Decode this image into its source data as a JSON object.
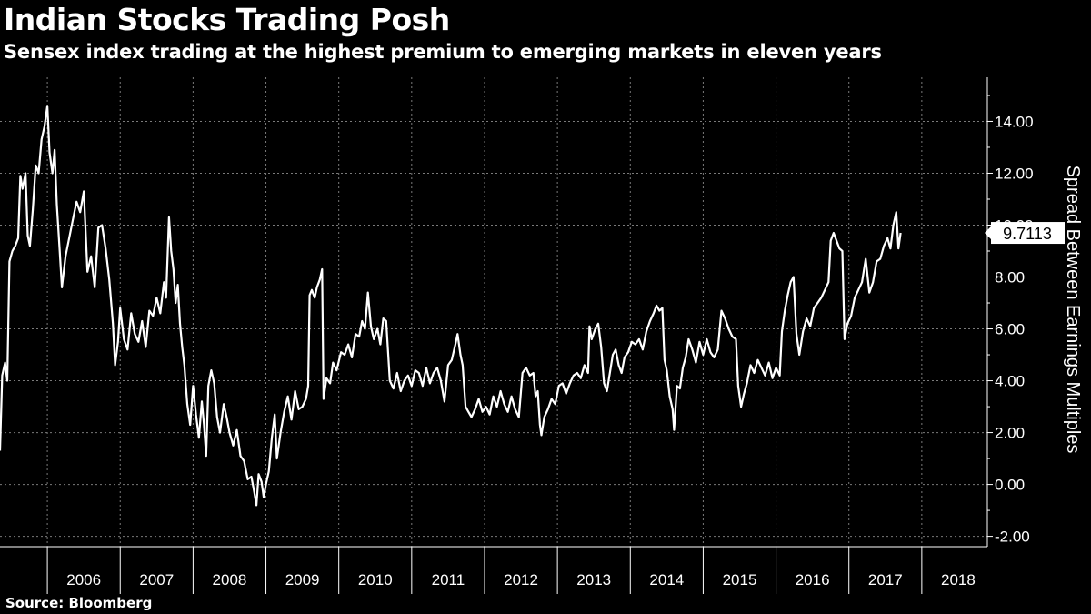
{
  "header": {
    "title": "Indian Stocks Trading Posh",
    "subtitle": "Sensex index trading at the highest premium to emerging markets in eleven years"
  },
  "footer": {
    "source": "Source: Bloomberg"
  },
  "colors": {
    "background": "#000000",
    "line": "#ffffff",
    "grid": "#7a7a7a"
  },
  "chart_data": {
    "type": "line",
    "title": "Indian Stocks Trading Posh",
    "subtitle": "Sensex index trading at the highest premium to emerging markets in eleven years",
    "xlabel": "",
    "ylabel": "Spread Between Earnings Multiples",
    "x_tick_labels": [
      "2006",
      "2007",
      "2008",
      "2009",
      "2010",
      "2011",
      "2012",
      "2013",
      "2014",
      "2015",
      "2016",
      "2017",
      "2018"
    ],
    "y_tick_labels": [
      "-2.00",
      "0.00",
      "2.00",
      "4.00",
      "6.00",
      "8.00",
      "10.00",
      "12.00",
      "14.00"
    ],
    "ylim": [
      -2.4,
      15.7
    ],
    "xlim": [
      2005.35,
      2018.9
    ],
    "grid": true,
    "last_value_label": "9.7113",
    "series": [
      {
        "values": [
          [
            2005.35,
            1.3
          ],
          [
            2005.38,
            4.2
          ],
          [
            2005.42,
            4.7
          ],
          [
            2005.45,
            4.0
          ],
          [
            2005.48,
            8.6
          ],
          [
            2005.52,
            9.0
          ],
          [
            2005.56,
            9.2
          ],
          [
            2005.6,
            9.5
          ],
          [
            2005.63,
            11.9
          ],
          [
            2005.66,
            11.4
          ],
          [
            2005.7,
            12.0
          ],
          [
            2005.73,
            9.6
          ],
          [
            2005.76,
            9.2
          ],
          [
            2005.8,
            10.6
          ],
          [
            2005.84,
            12.3
          ],
          [
            2005.88,
            12.0
          ],
          [
            2005.92,
            13.3
          ],
          [
            2005.96,
            13.8
          ],
          [
            2006.0,
            14.6
          ],
          [
            2006.03,
            12.8
          ],
          [
            2006.07,
            12.0
          ],
          [
            2006.1,
            12.9
          ],
          [
            2006.13,
            10.8
          ],
          [
            2006.17,
            9.0
          ],
          [
            2006.2,
            7.6
          ],
          [
            2006.25,
            8.8
          ],
          [
            2006.3,
            9.5
          ],
          [
            2006.35,
            10.2
          ],
          [
            2006.4,
            10.9
          ],
          [
            2006.45,
            10.5
          ],
          [
            2006.5,
            11.3
          ],
          [
            2006.55,
            8.2
          ],
          [
            2006.6,
            8.8
          ],
          [
            2006.65,
            7.6
          ],
          [
            2006.7,
            9.9
          ],
          [
            2006.75,
            10.0
          ],
          [
            2006.8,
            9.1
          ],
          [
            2006.85,
            7.9
          ],
          [
            2006.9,
            6.2
          ],
          [
            2006.93,
            4.6
          ],
          [
            2006.97,
            5.5
          ],
          [
            2007.0,
            6.8
          ],
          [
            2007.05,
            5.6
          ],
          [
            2007.1,
            5.2
          ],
          [
            2007.15,
            6.6
          ],
          [
            2007.2,
            5.8
          ],
          [
            2007.25,
            5.5
          ],
          [
            2007.3,
            6.3
          ],
          [
            2007.35,
            5.3
          ],
          [
            2007.4,
            6.7
          ],
          [
            2007.45,
            6.5
          ],
          [
            2007.5,
            7.2
          ],
          [
            2007.55,
            6.6
          ],
          [
            2007.6,
            7.8
          ],
          [
            2007.63,
            7.2
          ],
          [
            2007.67,
            10.3
          ],
          [
            2007.7,
            9.0
          ],
          [
            2007.73,
            8.3
          ],
          [
            2007.76,
            7.0
          ],
          [
            2007.79,
            7.7
          ],
          [
            2007.82,
            6.2
          ],
          [
            2007.85,
            5.3
          ],
          [
            2007.88,
            4.6
          ],
          [
            2007.92,
            3.1
          ],
          [
            2007.96,
            2.3
          ],
          [
            2008.0,
            3.8
          ],
          [
            2008.04,
            2.7
          ],
          [
            2008.08,
            1.8
          ],
          [
            2008.12,
            3.2
          ],
          [
            2008.15,
            2.3
          ],
          [
            2008.18,
            1.1
          ],
          [
            2008.21,
            3.8
          ],
          [
            2008.25,
            4.4
          ],
          [
            2008.29,
            3.9
          ],
          [
            2008.33,
            2.6
          ],
          [
            2008.37,
            2.0
          ],
          [
            2008.42,
            3.1
          ],
          [
            2008.46,
            2.6
          ],
          [
            2008.5,
            2.0
          ],
          [
            2008.55,
            1.5
          ],
          [
            2008.6,
            2.1
          ],
          [
            2008.65,
            1.1
          ],
          [
            2008.7,
            0.9
          ],
          [
            2008.75,
            0.2
          ],
          [
            2008.8,
            0.3
          ],
          [
            2008.84,
            -0.3
          ],
          [
            2008.87,
            -0.8
          ],
          [
            2008.9,
            0.4
          ],
          [
            2008.94,
            0.1
          ],
          [
            2008.97,
            -0.5
          ],
          [
            2009.0,
            0.0
          ],
          [
            2009.04,
            0.5
          ],
          [
            2009.08,
            1.8
          ],
          [
            2009.12,
            2.7
          ],
          [
            2009.15,
            1.0
          ],
          [
            2009.2,
            2.0
          ],
          [
            2009.25,
            2.8
          ],
          [
            2009.3,
            3.4
          ],
          [
            2009.35,
            2.5
          ],
          [
            2009.4,
            3.6
          ],
          [
            2009.45,
            2.9
          ],
          [
            2009.5,
            3.0
          ],
          [
            2009.55,
            3.3
          ],
          [
            2009.58,
            3.8
          ],
          [
            2009.6,
            7.3
          ],
          [
            2009.63,
            7.5
          ],
          [
            2009.67,
            7.2
          ],
          [
            2009.7,
            7.6
          ],
          [
            2009.74,
            7.9
          ],
          [
            2009.77,
            8.3
          ],
          [
            2009.79,
            3.3
          ],
          [
            2009.83,
            4.1
          ],
          [
            2009.88,
            3.9
          ],
          [
            2009.92,
            4.7
          ],
          [
            2009.97,
            4.4
          ],
          [
            2010.03,
            5.1
          ],
          [
            2010.08,
            5.0
          ],
          [
            2010.13,
            5.4
          ],
          [
            2010.18,
            4.9
          ],
          [
            2010.23,
            5.8
          ],
          [
            2010.28,
            5.7
          ],
          [
            2010.32,
            6.3
          ],
          [
            2010.36,
            6.0
          ],
          [
            2010.4,
            7.4
          ],
          [
            2010.44,
            6.1
          ],
          [
            2010.48,
            5.6
          ],
          [
            2010.53,
            6.0
          ],
          [
            2010.57,
            5.4
          ],
          [
            2010.61,
            6.4
          ],
          [
            2010.65,
            6.3
          ],
          [
            2010.7,
            4.0
          ],
          [
            2010.75,
            3.7
          ],
          [
            2010.8,
            4.3
          ],
          [
            2010.85,
            3.6
          ],
          [
            2010.9,
            4.0
          ],
          [
            2010.95,
            4.2
          ],
          [
            2011.0,
            3.8
          ],
          [
            2011.05,
            4.4
          ],
          [
            2011.1,
            4.3
          ],
          [
            2011.15,
            3.8
          ],
          [
            2011.2,
            4.5
          ],
          [
            2011.25,
            3.9
          ],
          [
            2011.3,
            4.3
          ],
          [
            2011.35,
            4.5
          ],
          [
            2011.4,
            4.0
          ],
          [
            2011.45,
            3.2
          ],
          [
            2011.5,
            4.6
          ],
          [
            2011.55,
            4.8
          ],
          [
            2011.6,
            5.4
          ],
          [
            2011.63,
            5.8
          ],
          [
            2011.67,
            5.0
          ],
          [
            2011.7,
            4.6
          ],
          [
            2011.74,
            3.0
          ],
          [
            2011.78,
            2.8
          ],
          [
            2011.82,
            2.6
          ],
          [
            2011.87,
            2.9
          ],
          [
            2011.92,
            3.3
          ],
          [
            2011.97,
            2.8
          ],
          [
            2012.02,
            3.0
          ],
          [
            2012.07,
            2.7
          ],
          [
            2012.12,
            3.4
          ],
          [
            2012.17,
            3.0
          ],
          [
            2012.22,
            3.6
          ],
          [
            2012.27,
            3.1
          ],
          [
            2012.32,
            2.8
          ],
          [
            2012.37,
            3.4
          ],
          [
            2012.42,
            2.9
          ],
          [
            2012.47,
            2.6
          ],
          [
            2012.52,
            4.3
          ],
          [
            2012.57,
            4.5
          ],
          [
            2012.62,
            4.2
          ],
          [
            2012.67,
            4.3
          ],
          [
            2012.7,
            3.4
          ],
          [
            2012.73,
            3.6
          ],
          [
            2012.76,
            2.3
          ],
          [
            2012.78,
            1.9
          ],
          [
            2012.82,
            2.6
          ],
          [
            2012.87,
            2.9
          ],
          [
            2012.92,
            3.3
          ],
          [
            2012.97,
            3.1
          ],
          [
            2013.02,
            3.8
          ],
          [
            2013.07,
            3.9
          ],
          [
            2013.12,
            3.5
          ],
          [
            2013.17,
            3.9
          ],
          [
            2013.22,
            4.2
          ],
          [
            2013.27,
            4.3
          ],
          [
            2013.32,
            4.1
          ],
          [
            2013.37,
            4.6
          ],
          [
            2013.42,
            4.3
          ],
          [
            2013.44,
            6.1
          ],
          [
            2013.47,
            5.6
          ],
          [
            2013.52,
            6.0
          ],
          [
            2013.56,
            6.2
          ],
          [
            2013.6,
            5.3
          ],
          [
            2013.64,
            3.9
          ],
          [
            2013.68,
            3.6
          ],
          [
            2013.72,
            4.3
          ],
          [
            2013.76,
            5.0
          ],
          [
            2013.8,
            5.2
          ],
          [
            2013.84,
            4.6
          ],
          [
            2013.88,
            4.3
          ],
          [
            2013.92,
            4.9
          ],
          [
            2013.97,
            5.1
          ],
          [
            2014.02,
            5.5
          ],
          [
            2014.07,
            5.4
          ],
          [
            2014.12,
            5.6
          ],
          [
            2014.17,
            5.2
          ],
          [
            2014.22,
            5.9
          ],
          [
            2014.27,
            6.3
          ],
          [
            2014.32,
            6.6
          ],
          [
            2014.36,
            6.9
          ],
          [
            2014.4,
            6.7
          ],
          [
            2014.44,
            6.8
          ],
          [
            2014.47,
            4.8
          ],
          [
            2014.5,
            4.4
          ],
          [
            2014.54,
            3.4
          ],
          [
            2014.58,
            2.9
          ],
          [
            2014.6,
            2.1
          ],
          [
            2014.64,
            3.8
          ],
          [
            2014.68,
            3.7
          ],
          [
            2014.72,
            4.5
          ],
          [
            2014.76,
            4.9
          ],
          [
            2014.8,
            5.6
          ],
          [
            2014.85,
            5.2
          ],
          [
            2014.9,
            4.7
          ],
          [
            2014.95,
            5.5
          ],
          [
            2015.0,
            5.0
          ],
          [
            2015.05,
            5.6
          ],
          [
            2015.1,
            5.1
          ],
          [
            2015.15,
            4.9
          ],
          [
            2015.2,
            5.2
          ],
          [
            2015.25,
            6.7
          ],
          [
            2015.3,
            6.4
          ],
          [
            2015.35,
            6.0
          ],
          [
            2015.4,
            5.7
          ],
          [
            2015.45,
            5.6
          ],
          [
            2015.48,
            3.8
          ],
          [
            2015.52,
            3.0
          ],
          [
            2015.56,
            3.5
          ],
          [
            2015.6,
            3.9
          ],
          [
            2015.65,
            4.6
          ],
          [
            2015.7,
            4.3
          ],
          [
            2015.75,
            4.8
          ],
          [
            2015.8,
            4.5
          ],
          [
            2015.85,
            4.2
          ],
          [
            2015.9,
            4.7
          ],
          [
            2015.95,
            4.1
          ],
          [
            2016.0,
            4.5
          ],
          [
            2016.05,
            4.2
          ],
          [
            2016.08,
            5.9
          ],
          [
            2016.12,
            6.7
          ],
          [
            2016.16,
            7.3
          ],
          [
            2016.2,
            7.8
          ],
          [
            2016.24,
            8.0
          ],
          [
            2016.28,
            5.8
          ],
          [
            2016.32,
            5.0
          ],
          [
            2016.37,
            5.9
          ],
          [
            2016.42,
            6.4
          ],
          [
            2016.47,
            6.1
          ],
          [
            2016.52,
            6.8
          ],
          [
            2016.57,
            7.0
          ],
          [
            2016.62,
            7.2
          ],
          [
            2016.67,
            7.5
          ],
          [
            2016.72,
            7.8
          ],
          [
            2016.75,
            9.4
          ],
          [
            2016.79,
            9.7
          ],
          [
            2016.83,
            9.4
          ],
          [
            2016.87,
            9.1
          ],
          [
            2016.91,
            9.0
          ],
          [
            2016.94,
            5.6
          ],
          [
            2016.98,
            6.2
          ],
          [
            2017.03,
            6.5
          ],
          [
            2017.08,
            7.2
          ],
          [
            2017.13,
            7.5
          ],
          [
            2017.18,
            7.8
          ],
          [
            2017.23,
            8.7
          ],
          [
            2017.28,
            7.4
          ],
          [
            2017.33,
            7.8
          ],
          [
            2017.38,
            8.6
          ],
          [
            2017.43,
            8.7
          ],
          [
            2017.48,
            9.2
          ],
          [
            2017.53,
            9.5
          ],
          [
            2017.57,
            9.1
          ],
          [
            2017.61,
            10.0
          ],
          [
            2017.65,
            10.5
          ],
          [
            2017.68,
            9.1
          ],
          [
            2017.71,
            9.7
          ]
        ]
      }
    ]
  }
}
